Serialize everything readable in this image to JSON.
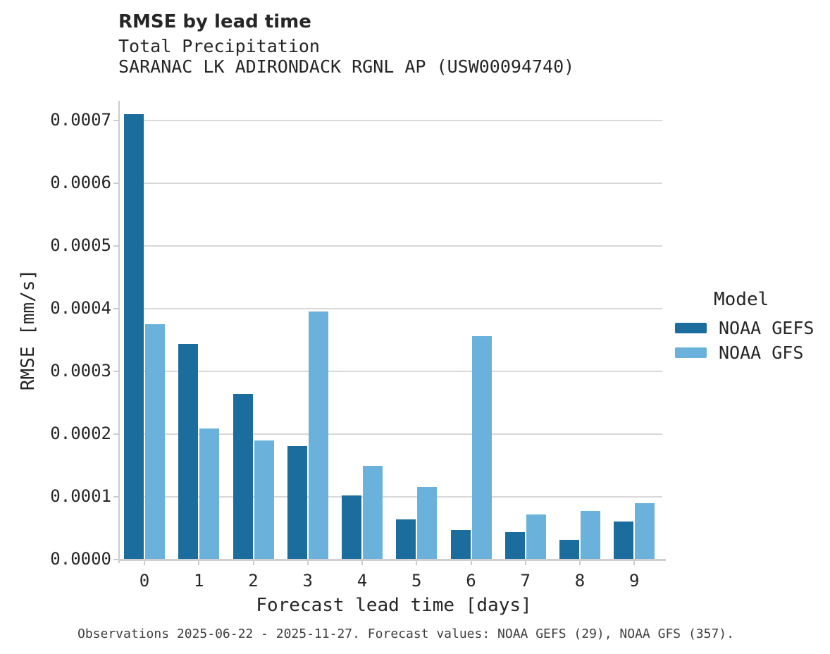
{
  "header": {
    "title": "RMSE by lead time",
    "subtitle_line1": "Total Precipitation",
    "subtitle_line2": "SARANAC LK ADIRONDACK RGNL AP (USW00094740)"
  },
  "legend": {
    "title": "Model",
    "items": [
      {
        "label": "NOAA GEFS",
        "color": "#1b6d9e"
      },
      {
        "label": "NOAA GFS",
        "color": "#6ab2db"
      }
    ]
  },
  "footer": {
    "caption": "Observations 2025-06-22 - 2025-11-27. Forecast values: NOAA GEFS (29), NOAA GFS (357)."
  },
  "chart_data": {
    "type": "bar",
    "title": "RMSE by lead time",
    "subtitle": [
      "Total Precipitation",
      "SARANAC LK ADIRONDACK RGNL AP (USW00094740)"
    ],
    "categories": [
      "0",
      "1",
      "2",
      "3",
      "4",
      "5",
      "6",
      "7",
      "8",
      "9"
    ],
    "series": [
      {
        "name": "NOAA GEFS",
        "color": "#1b6d9e",
        "values": [
          0.00071,
          0.000344,
          0.000264,
          0.000181,
          0.000102,
          6.4e-05,
          4.7e-05,
          4.4e-05,
          3.2e-05,
          6.1e-05
        ]
      },
      {
        "name": "NOAA GFS",
        "color": "#6ab2db",
        "values": [
          0.000375,
          0.000209,
          0.00019,
          0.000395,
          0.00015,
          0.000116,
          0.000356,
          7.2e-05,
          7.8e-05,
          9e-05
        ]
      }
    ],
    "xlabel": "Forecast lead time [days]",
    "ylabel": "RMSE [mm/s]",
    "ylim": [
      0,
      0.0007315
    ],
    "yticks": [
      0.0,
      0.0001,
      0.0002,
      0.0003,
      0.0004,
      0.0005,
      0.0006,
      0.0007
    ],
    "ytick_decimals": 4,
    "grid": true,
    "legend_title": "Model",
    "legend_position": "right",
    "caption": "Observations 2025-06-22 - 2025-11-27. Forecast values: NOAA GEFS (29), NOAA GFS (357)."
  },
  "style": {
    "gridline_color": "#d9d9d9",
    "spine_color": "#cccccc",
    "text_color": "#262626",
    "caption_color": "#3f3f3f",
    "background": "#ffffff"
  }
}
